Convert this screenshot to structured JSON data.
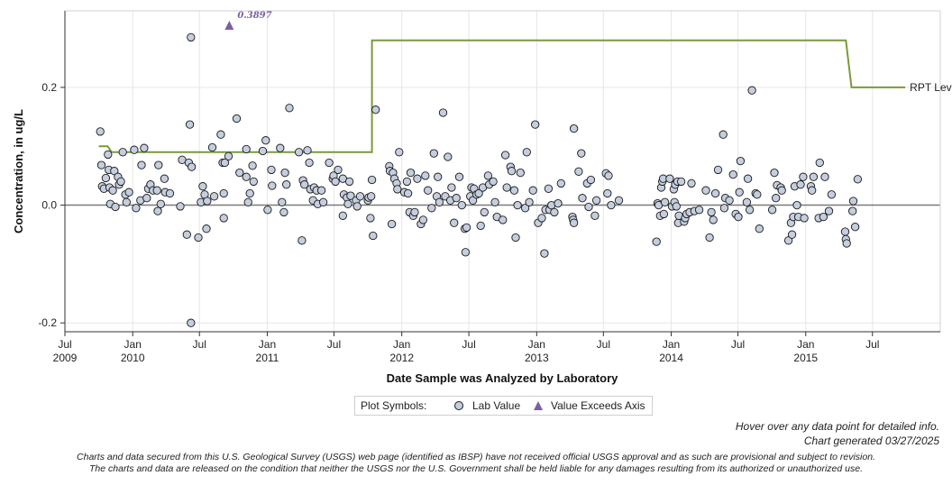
{
  "chart_data": {
    "type": "scatter",
    "title": "",
    "xlabel": "Date Sample was Analyzed by Laboratory",
    "ylabel": "Concentration, in ug/L",
    "xlim": [
      "2009-07-01",
      "2016-01-01"
    ],
    "ylim": [
      -0.215,
      0.33
    ],
    "yticks": [
      -0.2,
      0.0,
      0.2
    ],
    "ytick_labels": [
      "-0.2",
      "0.0",
      "0.2"
    ],
    "xticks": [
      {
        "date": "2009-07-01",
        "label": "Jul",
        "year": "2009"
      },
      {
        "date": "2010-01-01",
        "label": "Jan",
        "year": "2010"
      },
      {
        "date": "2010-07-01",
        "label": "Jul",
        "year": ""
      },
      {
        "date": "2011-01-01",
        "label": "Jan",
        "year": "2011"
      },
      {
        "date": "2011-07-01",
        "label": "Jul",
        "year": ""
      },
      {
        "date": "2012-01-01",
        "label": "Jan",
        "year": "2012"
      },
      {
        "date": "2012-07-01",
        "label": "Jul",
        "year": ""
      },
      {
        "date": "2013-01-01",
        "label": "Jan",
        "year": "2013"
      },
      {
        "date": "2013-07-01",
        "label": "Jul",
        "year": ""
      },
      {
        "date": "2014-01-01",
        "label": "Jan",
        "year": "2014"
      },
      {
        "date": "2014-07-01",
        "label": "Jul",
        "year": ""
      },
      {
        "date": "2015-01-01",
        "label": "Jan",
        "year": "2015"
      },
      {
        "date": "2015-07-01",
        "label": "Jul",
        "year": ""
      }
    ],
    "zero_line": 0.0,
    "grid": true,
    "rpt_level": {
      "name": "RPT Level",
      "color": "#7a9a3a",
      "points": [
        [
          "2009-10-01",
          0.1
        ],
        [
          "2009-10-25",
          0.1
        ],
        [
          "2009-11-05",
          0.09
        ],
        [
          "2011-10-12",
          0.09
        ],
        [
          "2011-10-12",
          0.28
        ],
        [
          "2015-04-20",
          0.28
        ],
        [
          "2015-05-05",
          0.2
        ],
        [
          "2015-09-28",
          0.2
        ]
      ]
    },
    "exceed": {
      "date": "2010-09-20",
      "value": 0.3897,
      "label": "0.3897",
      "color": "#7b5ea7"
    },
    "lab_values_name": "Lab Value",
    "lab_values": [
      [
        "2009-10-05",
        0.125
      ],
      [
        "2009-10-08",
        0.068
      ],
      [
        "2009-10-10",
        0.032
      ],
      [
        "2009-10-15",
        0.028
      ],
      [
        "2009-10-20",
        0.046
      ],
      [
        "2009-10-26",
        0.086
      ],
      [
        "2009-10-28",
        0.06
      ],
      [
        "2009-10-30",
        0.03
      ],
      [
        "2009-11-01",
        0.002
      ],
      [
        "2009-11-08",
        0.025
      ],
      [
        "2009-11-12",
        0.058
      ],
      [
        "2009-11-15",
        -0.003
      ],
      [
        "2009-11-22",
        0.048
      ],
      [
        "2009-11-25",
        0.035
      ],
      [
        "2009-11-30",
        0.04
      ],
      [
        "2009-12-05",
        0.09
      ],
      [
        "2009-12-12",
        0.018
      ],
      [
        "2009-12-15",
        0.005
      ],
      [
        "2009-12-22",
        0.022
      ],
      [
        "2010-01-05",
        0.094
      ],
      [
        "2010-01-10",
        -0.005
      ],
      [
        "2010-01-22",
        0.008
      ],
      [
        "2010-01-25",
        0.068
      ],
      [
        "2010-02-01",
        0.097
      ],
      [
        "2010-02-08",
        0.012
      ],
      [
        "2010-02-12",
        0.028
      ],
      [
        "2010-02-18",
        0.035
      ],
      [
        "2010-02-25",
        0.025
      ],
      [
        "2010-03-08",
        0.025
      ],
      [
        "2010-03-10",
        -0.01
      ],
      [
        "2010-03-12",
        0.068
      ],
      [
        "2010-03-18",
        0.002
      ],
      [
        "2010-03-28",
        0.045
      ],
      [
        "2010-03-30",
        0.022
      ],
      [
        "2010-04-12",
        0.02
      ],
      [
        "2010-05-10",
        -0.002
      ],
      [
        "2010-05-15",
        0.077
      ],
      [
        "2010-05-28",
        -0.05
      ],
      [
        "2010-06-02",
        0.072
      ],
      [
        "2010-06-05",
        0.137
      ],
      [
        "2010-06-08",
        0.285
      ],
      [
        "2010-06-10",
        0.065
      ],
      [
        "2010-06-08",
        -0.2
      ],
      [
        "2010-06-28",
        -0.055
      ],
      [
        "2010-07-05",
        0.005
      ],
      [
        "2010-07-10",
        0.032
      ],
      [
        "2010-07-15",
        0.018
      ],
      [
        "2010-07-20",
        -0.04
      ],
      [
        "2010-07-22",
        0.007
      ],
      [
        "2010-08-05",
        0.098
      ],
      [
        "2010-08-10",
        0.015
      ],
      [
        "2010-08-28",
        0.12
      ],
      [
        "2010-09-02",
        0.072
      ],
      [
        "2010-09-05",
        0.02
      ],
      [
        "2010-09-05",
        -0.022
      ],
      [
        "2010-09-08",
        0.072
      ],
      [
        "2010-09-18",
        0.083
      ],
      [
        "2010-10-10",
        0.147
      ],
      [
        "2010-10-18",
        0.055
      ],
      [
        "2010-11-05",
        0.095
      ],
      [
        "2010-11-05",
        0.048
      ],
      [
        "2010-11-10",
        0.005
      ],
      [
        "2010-11-15",
        0.02
      ],
      [
        "2010-11-22",
        0.067
      ],
      [
        "2010-11-25",
        0.04
      ],
      [
        "2010-12-20",
        0.092
      ],
      [
        "2010-12-28",
        0.11
      ],
      [
        "2011-01-02",
        -0.008
      ],
      [
        "2011-01-12",
        0.06
      ],
      [
        "2011-01-14",
        0.033
      ],
      [
        "2011-02-05",
        0.097
      ],
      [
        "2011-02-10",
        0.005
      ],
      [
        "2011-02-15",
        -0.012
      ],
      [
        "2011-02-18",
        0.055
      ],
      [
        "2011-02-22",
        0.035
      ],
      [
        "2011-03-02",
        0.165
      ],
      [
        "2011-03-28",
        0.09
      ],
      [
        "2011-04-05",
        -0.06
      ],
      [
        "2011-04-08",
        0.042
      ],
      [
        "2011-04-12",
        0.035
      ],
      [
        "2011-04-20",
        0.093
      ],
      [
        "2011-04-25",
        0.072
      ],
      [
        "2011-04-28",
        0.027
      ],
      [
        "2011-05-05",
        0.008
      ],
      [
        "2011-05-08",
        0.03
      ],
      [
        "2011-05-15",
        0.025
      ],
      [
        "2011-05-18",
        0.002
      ],
      [
        "2011-05-28",
        0.025
      ],
      [
        "2011-06-02",
        0.005
      ],
      [
        "2011-06-18",
        0.072
      ],
      [
        "2011-06-28",
        0.045
      ],
      [
        "2011-06-30",
        0.05
      ],
      [
        "2011-07-05",
        0.04
      ],
      [
        "2011-07-12",
        0.06
      ],
      [
        "2011-07-25",
        -0.018
      ],
      [
        "2011-07-25",
        0.045
      ],
      [
        "2011-07-28",
        0.018
      ],
      [
        "2011-08-05",
        0.013
      ],
      [
        "2011-08-08",
        0.002
      ],
      [
        "2011-08-12",
        0.04
      ],
      [
        "2011-08-15",
        0.016
      ],
      [
        "2011-08-30",
        0.008
      ],
      [
        "2011-09-02",
        -0.002
      ],
      [
        "2011-09-10",
        0.015
      ],
      [
        "2011-10-01",
        0.008
      ],
      [
        "2011-10-03",
        0.013
      ],
      [
        "2011-10-08",
        -0.022
      ],
      [
        "2011-10-10",
        0.015
      ],
      [
        "2011-10-12",
        0.043
      ],
      [
        "2011-10-15",
        -0.052
      ],
      [
        "2011-10-22",
        0.162
      ],
      [
        "2011-11-28",
        0.066
      ],
      [
        "2011-11-30",
        0.058
      ],
      [
        "2011-12-05",
        -0.032
      ],
      [
        "2011-12-08",
        0.055
      ],
      [
        "2011-12-12",
        0.045
      ],
      [
        "2011-12-18",
        0.037
      ],
      [
        "2011-12-20",
        0.027
      ],
      [
        "2011-12-25",
        0.09
      ],
      [
        "2012-01-08",
        0.022
      ],
      [
        "2012-01-15",
        0.04
      ],
      [
        "2012-01-18",
        0.02
      ],
      [
        "2012-01-22",
        -0.012
      ],
      [
        "2012-01-25",
        0.055
      ],
      [
        "2012-02-01",
        -0.018
      ],
      [
        "2012-02-05",
        -0.012
      ],
      [
        "2012-02-12",
        0.045
      ],
      [
        "2012-02-22",
        -0.032
      ],
      [
        "2012-02-28",
        -0.025
      ],
      [
        "2012-03-05",
        0.05
      ],
      [
        "2012-03-12",
        0.025
      ],
      [
        "2012-03-22",
        -0.005
      ],
      [
        "2012-03-28",
        0.088
      ],
      [
        "2012-04-05",
        0.015
      ],
      [
        "2012-04-08",
        0.048
      ],
      [
        "2012-04-12",
        0.005
      ],
      [
        "2012-04-22",
        0.157
      ],
      [
        "2012-04-28",
        0.015
      ],
      [
        "2012-05-05",
        0.082
      ],
      [
        "2012-05-12",
        0.008
      ],
      [
        "2012-05-15",
        0.03
      ],
      [
        "2012-05-22",
        -0.03
      ],
      [
        "2012-05-28",
        0.012
      ],
      [
        "2012-06-05",
        0.048
      ],
      [
        "2012-06-12",
        0.0
      ],
      [
        "2012-06-20",
        -0.04
      ],
      [
        "2012-06-22",
        -0.08
      ],
      [
        "2012-06-25",
        -0.038
      ],
      [
        "2012-07-05",
        0.015
      ],
      [
        "2012-07-08",
        0.03
      ],
      [
        "2012-07-12",
        0.008
      ],
      [
        "2012-07-15",
        0.028
      ],
      [
        "2012-07-22",
        0.018
      ],
      [
        "2012-07-28",
        0.02
      ],
      [
        "2012-08-02",
        -0.035
      ],
      [
        "2012-08-08",
        0.03
      ],
      [
        "2012-08-12",
        -0.012
      ],
      [
        "2012-08-22",
        0.05
      ],
      [
        "2012-08-25",
        0.035
      ],
      [
        "2012-09-05",
        0.04
      ],
      [
        "2012-09-10",
        0.005
      ],
      [
        "2012-09-15",
        -0.02
      ],
      [
        "2012-10-01",
        -0.025
      ],
      [
        "2012-10-08",
        0.085
      ],
      [
        "2012-10-12",
        0.03
      ],
      [
        "2012-10-22",
        0.065
      ],
      [
        "2012-10-25",
        0.058
      ],
      [
        "2012-11-01",
        0.025
      ],
      [
        "2012-11-05",
        -0.055
      ],
      [
        "2012-11-10",
        0.0
      ],
      [
        "2012-11-18",
        0.055
      ],
      [
        "2012-12-01",
        -0.005
      ],
      [
        "2012-12-05",
        0.09
      ],
      [
        "2012-12-12",
        0.005
      ],
      [
        "2012-12-22",
        0.025
      ],
      [
        "2012-12-28",
        0.137
      ],
      [
        "2013-01-05",
        -0.03
      ],
      [
        "2013-01-15",
        -0.022
      ],
      [
        "2013-01-22",
        -0.082
      ],
      [
        "2013-01-25",
        -0.008
      ],
      [
        "2013-02-02",
        0.028
      ],
      [
        "2013-02-05",
        -0.008
      ],
      [
        "2013-02-10",
        0.0
      ],
      [
        "2013-02-18",
        -0.012
      ],
      [
        "2013-02-28",
        0.003
      ],
      [
        "2013-03-08",
        0.037
      ],
      [
        "2013-04-08",
        -0.02
      ],
      [
        "2013-04-10",
        -0.025
      ],
      [
        "2013-04-12",
        -0.03
      ],
      [
        "2013-04-12",
        0.13
      ],
      [
        "2013-04-25",
        0.057
      ],
      [
        "2013-05-02",
        0.088
      ],
      [
        "2013-05-05",
        0.012
      ],
      [
        "2013-05-18",
        0.037
      ],
      [
        "2013-05-22",
        -0.003
      ],
      [
        "2013-05-28",
        0.043
      ],
      [
        "2013-06-08",
        -0.018
      ],
      [
        "2013-06-12",
        0.008
      ],
      [
        "2013-07-08",
        0.054
      ],
      [
        "2013-07-12",
        0.02
      ],
      [
        "2013-07-15",
        0.05
      ],
      [
        "2013-07-22",
        0.0
      ],
      [
        "2013-08-12",
        0.008
      ],
      [
        "2013-11-22",
        -0.062
      ],
      [
        "2013-11-25",
        0.003
      ],
      [
        "2013-11-28",
        0.0
      ],
      [
        "2013-12-02",
        -0.018
      ],
      [
        "2013-12-05",
        0.03
      ],
      [
        "2013-12-08",
        0.04
      ],
      [
        "2013-12-10",
        0.045
      ],
      [
        "2013-12-12",
        -0.015
      ],
      [
        "2013-12-15",
        0.005
      ],
      [
        "2013-12-28",
        0.045
      ],
      [
        "2014-01-03",
        -0.002
      ],
      [
        "2014-01-08",
        0.027
      ],
      [
        "2014-01-10",
        0.005
      ],
      [
        "2014-01-12",
        0.035
      ],
      [
        "2014-01-15",
        -0.002
      ],
      [
        "2014-01-18",
        0.04
      ],
      [
        "2014-01-20",
        -0.03
      ],
      [
        "2014-01-22",
        -0.018
      ],
      [
        "2014-01-28",
        0.04
      ],
      [
        "2014-02-05",
        -0.028
      ],
      [
        "2014-02-08",
        -0.022
      ],
      [
        "2014-02-12",
        -0.015
      ],
      [
        "2014-02-20",
        -0.012
      ],
      [
        "2014-02-25",
        0.037
      ],
      [
        "2014-03-05",
        -0.01
      ],
      [
        "2014-03-18",
        -0.008
      ],
      [
        "2014-04-05",
        0.025
      ],
      [
        "2014-04-15",
        -0.055
      ],
      [
        "2014-04-20",
        -0.012
      ],
      [
        "2014-04-25",
        -0.025
      ],
      [
        "2014-05-01",
        0.02
      ],
      [
        "2014-05-08",
        0.06
      ],
      [
        "2014-05-22",
        0.12
      ],
      [
        "2014-05-25",
        -0.005
      ],
      [
        "2014-05-28",
        0.012
      ],
      [
        "2014-06-08",
        0.008
      ],
      [
        "2014-06-18",
        0.052
      ],
      [
        "2014-06-25",
        -0.015
      ],
      [
        "2014-07-02",
        -0.02
      ],
      [
        "2014-07-05",
        0.022
      ],
      [
        "2014-07-08",
        0.075
      ],
      [
        "2014-07-25",
        0.005
      ],
      [
        "2014-07-28",
        0.045
      ],
      [
        "2014-08-02",
        -0.008
      ],
      [
        "2014-08-08",
        0.195
      ],
      [
        "2014-08-18",
        0.02
      ],
      [
        "2014-08-22",
        0.018
      ],
      [
        "2014-08-28",
        -0.04
      ],
      [
        "2014-10-02",
        -0.008
      ],
      [
        "2014-10-08",
        0.055
      ],
      [
        "2014-10-12",
        0.012
      ],
      [
        "2014-10-15",
        0.034
      ],
      [
        "2014-10-25",
        0.03
      ],
      [
        "2014-10-28",
        0.025
      ],
      [
        "2014-11-15",
        -0.06
      ],
      [
        "2014-11-22",
        -0.03
      ],
      [
        "2014-11-25",
        -0.05
      ],
      [
        "2014-11-28",
        -0.02
      ],
      [
        "2014-12-02",
        0.032
      ],
      [
        "2014-12-08",
        0.0
      ],
      [
        "2014-12-12",
        -0.02
      ],
      [
        "2014-12-18",
        0.035
      ],
      [
        "2014-12-25",
        0.048
      ],
      [
        "2014-12-28",
        -0.022
      ],
      [
        "2015-01-15",
        0.032
      ],
      [
        "2015-01-18",
        0.025
      ],
      [
        "2015-01-22",
        0.048
      ],
      [
        "2015-02-05",
        -0.022
      ],
      [
        "2015-02-08",
        0.072
      ],
      [
        "2015-02-18",
        -0.02
      ],
      [
        "2015-02-22",
        0.048
      ],
      [
        "2015-03-05",
        -0.01
      ],
      [
        "2015-03-12",
        0.018
      ],
      [
        "2015-04-18",
        -0.045
      ],
      [
        "2015-04-20",
        -0.058
      ],
      [
        "2015-04-22",
        -0.065
      ],
      [
        "2015-05-08",
        -0.01
      ],
      [
        "2015-05-10",
        0.007
      ],
      [
        "2015-05-15",
        -0.037
      ],
      [
        "2015-05-22",
        0.044
      ]
    ]
  },
  "legend": {
    "title": "Plot Symbols:",
    "lab_value": "Lab Value",
    "exceeds": "Value Exceeds Axis"
  },
  "notes": {
    "hover": "Hover over any data point for detailed info.",
    "generated": "Chart generated 03/27/2025"
  },
  "disclaimer": {
    "line1": "Charts and data secured from this U.S. Geological Survey (USGS) web page (identified as IBSP) have not received official USGS approval and as such are provisional and subject to revision.",
    "line2": "The charts and data are released on the condition that neither the USGS nor the U.S. Government shall be held liable for any damages resulting from its authorized or unauthorized use."
  },
  "colors": {
    "marker_fill": "#c5cede",
    "marker_stroke": "#1a1a1a",
    "grid": "#e6e6e6",
    "axis": "#333333",
    "zero_line": "#7a7a7a"
  }
}
